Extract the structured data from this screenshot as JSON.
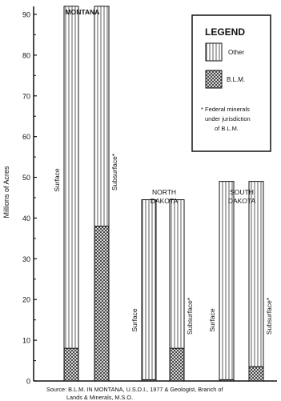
{
  "chart_data": {
    "type": "bar",
    "ylabel": "Millions of Acres",
    "ylim": [
      0,
      95
    ],
    "yticks": [
      0,
      10,
      20,
      30,
      40,
      50,
      60,
      70,
      80,
      90
    ],
    "ytick_labels": [
      "0",
      "10",
      "20",
      "30",
      "40",
      "50",
      "60",
      "70",
      "80",
      "90"
    ],
    "grid": false,
    "legend_placement": "top-right",
    "legend": {
      "title": "LEGEND",
      "items": [
        {
          "label": "Other",
          "pattern": "vertical-lines"
        },
        {
          "label": "B.L.M.",
          "pattern": "crosshatch"
        }
      ],
      "footnote": [
        "* Federal minerals",
        "under jurisdiction",
        "of B.L.M."
      ]
    },
    "groups": [
      {
        "name": "MONTANA",
        "bars": [
          {
            "label": "Surface",
            "total": 92,
            "blm": 8
          },
          {
            "label": "Subsurface*",
            "total": 92,
            "blm": 38
          }
        ]
      },
      {
        "name": "NORTH DAKOTA",
        "bars": [
          {
            "label": "Surface",
            "total": 44.5,
            "blm": 0.3
          },
          {
            "label": "Subsurface*",
            "total": 44.5,
            "blm": 8
          }
        ]
      },
      {
        "name": "SOUTH DAKOTA",
        "bars": [
          {
            "label": "Surface",
            "total": 49,
            "blm": 0.3
          },
          {
            "label": "Subsurface*",
            "total": 49,
            "blm": 3.5
          }
        ]
      }
    ],
    "source": [
      "Source: B.L.M. IN MONTANA, U.S.D.I., 1977 & Geologist, Branch of",
      "Lands & Minerals, M.S.O."
    ]
  }
}
